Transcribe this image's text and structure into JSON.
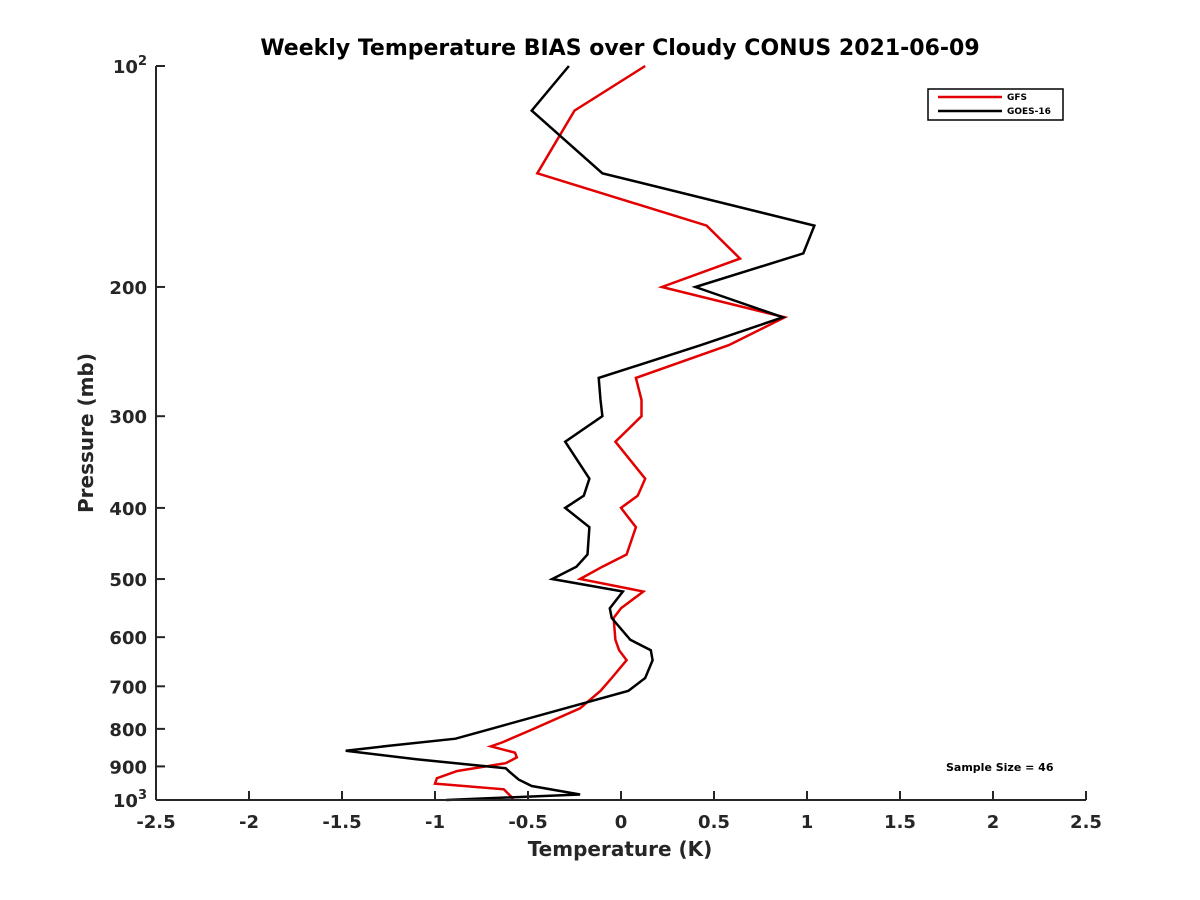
{
  "chart_data": {
    "type": "line",
    "title": "Weekly Temperature BIAS over Cloudy CONUS 2021-06-09",
    "xlabel": "Temperature (K)",
    "ylabel": "Pressure (mb)",
    "xlim": [
      -2.5,
      2.5
    ],
    "ylim": [
      100,
      1000
    ],
    "y_scale": "log",
    "y_reversed": true,
    "x_ticks": [
      "-2.5",
      "-2",
      "-1.5",
      "-1",
      "-0.5",
      "0",
      "0.5",
      "1",
      "1.5",
      "2",
      "2.5"
    ],
    "x_tick_values": [
      -2.5,
      -2,
      -1.5,
      -1,
      -0.5,
      0,
      0.5,
      1,
      1.5,
      2,
      2.5
    ],
    "y_ticks": [
      {
        "value": 100,
        "base": "10",
        "exp": "2"
      },
      {
        "value": 200,
        "label": "200"
      },
      {
        "value": 300,
        "label": "300"
      },
      {
        "value": 400,
        "label": "400"
      },
      {
        "value": 500,
        "label": "500"
      },
      {
        "value": 600,
        "label": "600"
      },
      {
        "value": 700,
        "label": "700"
      },
      {
        "value": 800,
        "label": "800"
      },
      {
        "value": 900,
        "label": "900"
      },
      {
        "value": 1000,
        "base": "10",
        "exp": "3"
      }
    ],
    "grid": false,
    "legend_position": "top-right",
    "annotation": "Sample Size = 46",
    "series": [
      {
        "name": "GFS",
        "color": "#e30000",
        "points": [
          [
            0.13,
            100
          ],
          [
            -0.25,
            115
          ],
          [
            -0.45,
            140
          ],
          [
            0.46,
            165
          ],
          [
            0.64,
            183
          ],
          [
            0.22,
            200
          ],
          [
            0.88,
            220
          ],
          [
            0.58,
            240
          ],
          [
            0.08,
            266
          ],
          [
            0.11,
            285
          ],
          [
            0.11,
            300
          ],
          [
            -0.03,
            325
          ],
          [
            0.13,
            365
          ],
          [
            0.09,
            385
          ],
          [
            0.0,
            400
          ],
          [
            0.08,
            425
          ],
          [
            0.03,
            463
          ],
          [
            -0.1,
            481
          ],
          [
            -0.22,
            500
          ],
          [
            0.12,
            520
          ],
          [
            0.0,
            548
          ],
          [
            -0.04,
            565
          ],
          [
            -0.03,
            605
          ],
          [
            -0.01,
            625
          ],
          [
            0.03,
            645
          ],
          [
            -0.05,
            682
          ],
          [
            -0.11,
            710
          ],
          [
            -0.22,
            750
          ],
          [
            -0.47,
            800
          ],
          [
            -0.64,
            835
          ],
          [
            -0.7,
            845
          ],
          [
            -0.57,
            862
          ],
          [
            -0.56,
            875
          ],
          [
            -0.62,
            891
          ],
          [
            -0.88,
            913
          ],
          [
            -0.99,
            934
          ],
          [
            -1.0,
            950
          ],
          [
            -0.63,
            967
          ],
          [
            -0.59,
            990
          ],
          [
            -0.58,
            1000
          ]
        ]
      },
      {
        "name": "GOES-16",
        "color": "#000000",
        "points": [
          [
            -0.28,
            100
          ],
          [
            -0.48,
            115
          ],
          [
            -0.1,
            140
          ],
          [
            1.04,
            165
          ],
          [
            0.98,
            180
          ],
          [
            0.4,
            200
          ],
          [
            0.87,
            220
          ],
          [
            0.43,
            240
          ],
          [
            -0.12,
            266
          ],
          [
            -0.11,
            285
          ],
          [
            -0.1,
            300
          ],
          [
            -0.3,
            325
          ],
          [
            -0.17,
            365
          ],
          [
            -0.2,
            385
          ],
          [
            -0.3,
            400
          ],
          [
            -0.17,
            425
          ],
          [
            -0.18,
            463
          ],
          [
            -0.24,
            481
          ],
          [
            -0.37,
            500
          ],
          [
            0.01,
            520
          ],
          [
            -0.06,
            548
          ],
          [
            -0.05,
            565
          ],
          [
            0.05,
            605
          ],
          [
            0.16,
            625
          ],
          [
            0.17,
            645
          ],
          [
            0.13,
            682
          ],
          [
            0.04,
            710
          ],
          [
            -0.3,
            750
          ],
          [
            -0.7,
            800
          ],
          [
            -0.89,
            825
          ],
          [
            -1.24,
            843
          ],
          [
            -1.48,
            857
          ],
          [
            -1.1,
            880
          ],
          [
            -0.62,
            905
          ],
          [
            -0.6,
            915
          ],
          [
            -0.55,
            938
          ],
          [
            -0.48,
            957
          ],
          [
            -0.22,
            983
          ],
          [
            -0.94,
            1000
          ]
        ]
      }
    ]
  }
}
